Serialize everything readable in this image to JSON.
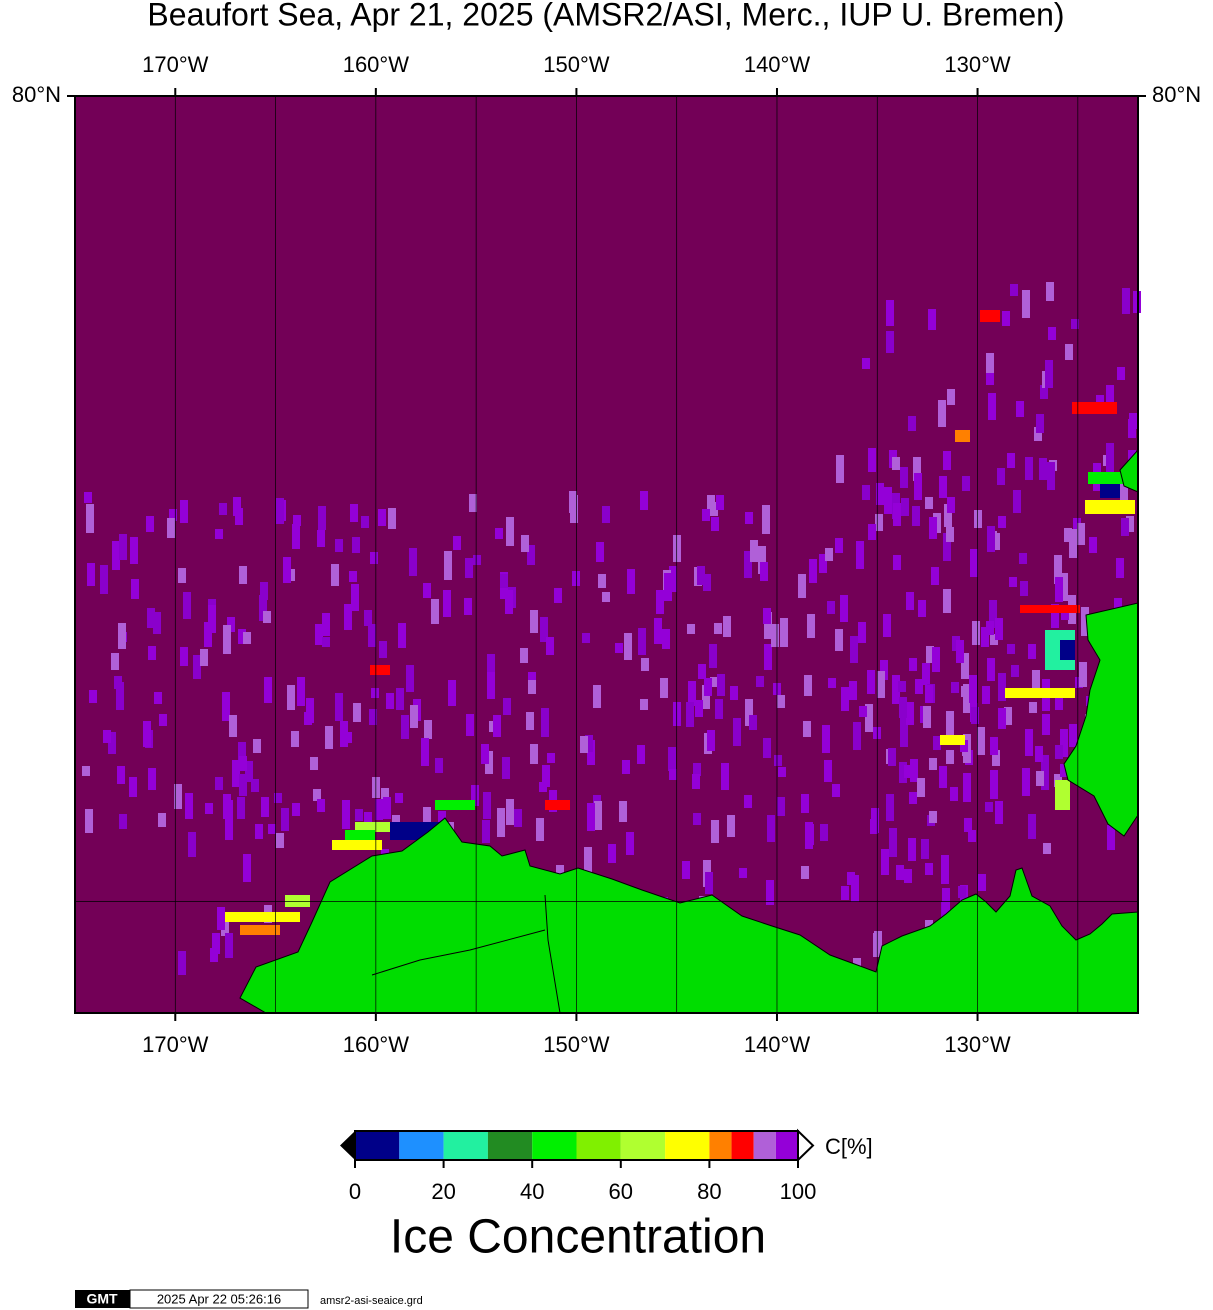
{
  "map": {
    "title": "Beaufort Sea, Apr 21, 2025 (AMSR2/ASI, Merc., IUP U. Bremen)",
    "lonlim": [
      -175,
      -122
    ],
    "latlim": [
      68,
      80
    ],
    "lon_ticks": [
      {
        "value": -170,
        "label": "170°W"
      },
      {
        "value": -160,
        "label": "160°W"
      },
      {
        "value": -150,
        "label": "150°W"
      },
      {
        "value": -140,
        "label": "140°W"
      },
      {
        "value": -130,
        "label": "130°W"
      }
    ],
    "lon_gridlines": [
      -170,
      -165,
      -160,
      -155,
      -150,
      -145,
      -140,
      -135,
      -130,
      -125
    ],
    "lat_ticks": [
      {
        "value": 80,
        "label": "80°N"
      }
    ],
    "lat_gridlines": [
      70
    ],
    "water_color": "#730057",
    "land_color": "#00dd00"
  },
  "colorbar": {
    "bounds": [
      0,
      10,
      20,
      30,
      40,
      50,
      60,
      70,
      80,
      85,
      90,
      95,
      100
    ],
    "colors": [
      "#000088",
      "#1e90ff",
      "#22f0a0",
      "#228b22",
      "#00f000",
      "#80f000",
      "#b0ff30",
      "#ffff00",
      "#ff8000",
      "#ff0000",
      "#b060d8",
      "#9400d8"
    ],
    "ticks": [
      0,
      20,
      40,
      60,
      80,
      100
    ],
    "unit": "C[%]",
    "title": "Ice Concentration"
  },
  "footer": {
    "logo": "GMT",
    "timestamp": "2025 Apr 22 05:26:16",
    "file": "amsr2-asi-seaice.grd"
  }
}
